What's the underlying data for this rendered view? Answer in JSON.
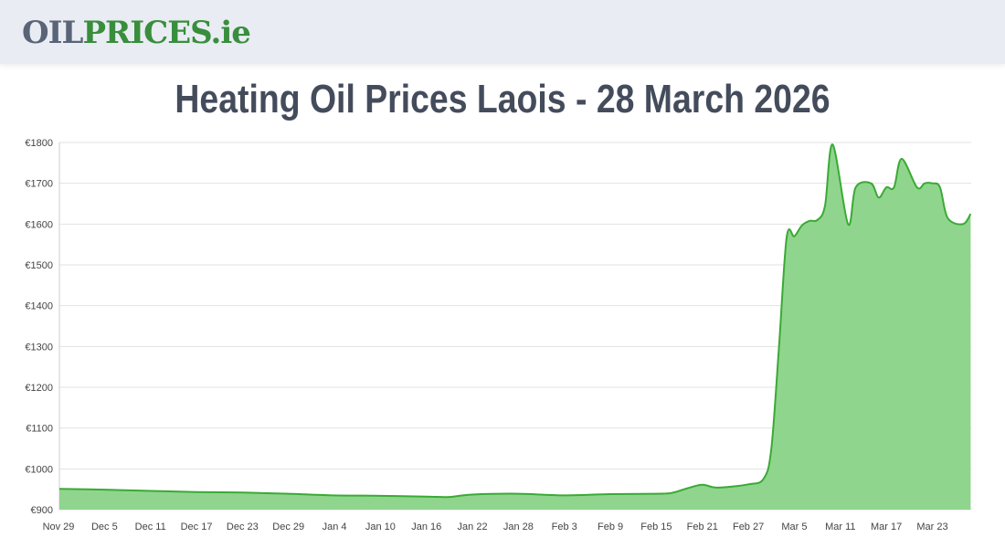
{
  "header": {
    "logo_part1": "OIL",
    "logo_part2": "PRICES.ie"
  },
  "title": "Heating Oil Prices Laois - 28 March 2026",
  "chart_data": {
    "type": "area",
    "title": "Heating Oil Prices Laois - 28 March 2026",
    "xlabel": "",
    "ylabel": "",
    "ylim": [
      900,
      1800
    ],
    "y_ticks": [
      "€900",
      "€1000",
      "€1100",
      "€1200",
      "€1300",
      "€1400",
      "€1500",
      "€1600",
      "€1700",
      "€1800"
    ],
    "x_ticks": [
      "Nov 29",
      "Dec 5",
      "Dec 11",
      "Dec 17",
      "Dec 23",
      "Dec 29",
      "Jan 4",
      "Jan 10",
      "Jan 16",
      "Jan 22",
      "Jan 28",
      "Feb 3",
      "Feb 9",
      "Feb 15",
      "Feb 21",
      "Feb 27",
      "Mar 5",
      "Mar 11",
      "Mar 17",
      "Mar 23"
    ],
    "grid": true,
    "color": "#3aaa35",
    "fill": "#90d58d",
    "points": [
      [
        "Nov 29",
        951
      ],
      [
        "Dec 5",
        949
      ],
      [
        "Dec 11",
        946
      ],
      [
        "Dec 17",
        943
      ],
      [
        "Dec 23",
        942
      ],
      [
        "Dec 29",
        939
      ],
      [
        "Jan 4",
        935
      ],
      [
        "Jan 10",
        934
      ],
      [
        "Jan 16",
        932
      ],
      [
        "Jan 19",
        931
      ],
      [
        "Jan 22",
        937
      ],
      [
        "Jan 28",
        939
      ],
      [
        "Feb 3",
        935
      ],
      [
        "Feb 9",
        938
      ],
      [
        "Feb 15",
        939
      ],
      [
        "Feb 17",
        941
      ],
      [
        "Feb 19",
        952
      ],
      [
        "Feb 21",
        961
      ],
      [
        "Feb 23",
        954
      ],
      [
        "Feb 27",
        962
      ],
      [
        "Mar 1",
        976
      ],
      [
        "Mar 2",
        1050
      ],
      [
        "Mar 3",
        1300
      ],
      [
        "Mar 4",
        1568
      ],
      [
        "Mar 5",
        1570
      ],
      [
        "Mar 6",
        1597
      ],
      [
        "Mar 7",
        1608
      ],
      [
        "Mar 8",
        1610
      ],
      [
        "Mar 9",
        1645
      ],
      [
        "Mar 10",
        1795
      ],
      [
        "Mar 12",
        1600
      ],
      [
        "Mar 13",
        1690
      ],
      [
        "Mar 15",
        1700
      ],
      [
        "Mar 16",
        1665
      ],
      [
        "Mar 17",
        1690
      ],
      [
        "Mar 18",
        1690
      ],
      [
        "Mar 19",
        1760
      ],
      [
        "Mar 21",
        1690
      ],
      [
        "Mar 22",
        1700
      ],
      [
        "Mar 23",
        1700
      ],
      [
        "Mar 24",
        1690
      ],
      [
        "Mar 25",
        1615
      ],
      [
        "Mar 27",
        1600
      ],
      [
        "Mar 28",
        1625
      ]
    ]
  }
}
